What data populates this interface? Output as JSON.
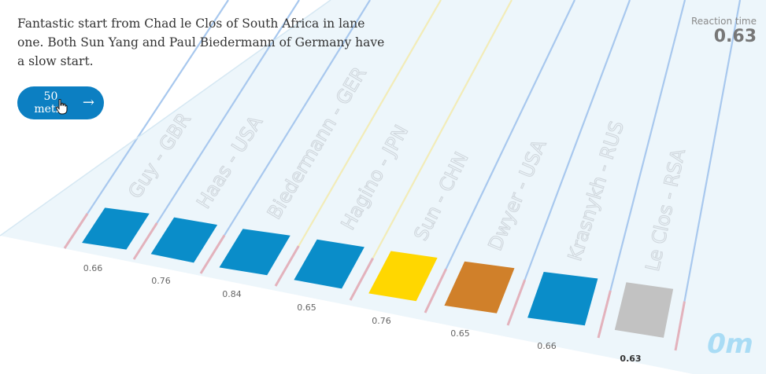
{
  "caption": "Fantastic start from Chad le Clos of South Africa in lane one. Both Sun Yang and Paul Biedermann of Germany have a slow start.",
  "button": {
    "label": "50 metre",
    "icon": "arrow-right-icon"
  },
  "reaction_time": {
    "label": "Reaction time",
    "value": "0.63"
  },
  "distance_marker": "0m",
  "colors": {
    "pool": "#edf6fb",
    "lane_blue": "#a8c8ee",
    "lane_yellow": "#f2ecb8",
    "lane_red": "#e3b2bc",
    "swimmer_blue": "#0a8dc9",
    "swimmer_yellow": "#ffd700",
    "swimmer_orange": "#d0802a",
    "swimmer_grey": "#c2c2c2",
    "button": "#0c7fc2"
  },
  "lanes": [
    {
      "name": "Guy - GBR",
      "reaction": "0.66",
      "color": "#0a8dc9",
      "highlight": false
    },
    {
      "name": "Haas - USA",
      "reaction": "0.76",
      "color": "#0a8dc9",
      "highlight": false
    },
    {
      "name": "Biedermann - GER",
      "reaction": "0.84",
      "color": "#0a8dc9",
      "highlight": false
    },
    {
      "name": "Hagino - JPN",
      "reaction": "0.65",
      "color": "#0a8dc9",
      "highlight": false
    },
    {
      "name": "Sun - CHN",
      "reaction": "0.76",
      "color": "#ffd700",
      "highlight": false
    },
    {
      "name": "Dwyer - USA",
      "reaction": "0.65",
      "color": "#d0802a",
      "highlight": false
    },
    {
      "name": "Krasnykh - RUS",
      "reaction": "0.66",
      "color": "#0a8dc9",
      "highlight": false
    },
    {
      "name": "Le Clos - RSA",
      "reaction": "0.63",
      "color": "#c2c2c2",
      "highlight": true
    }
  ]
}
